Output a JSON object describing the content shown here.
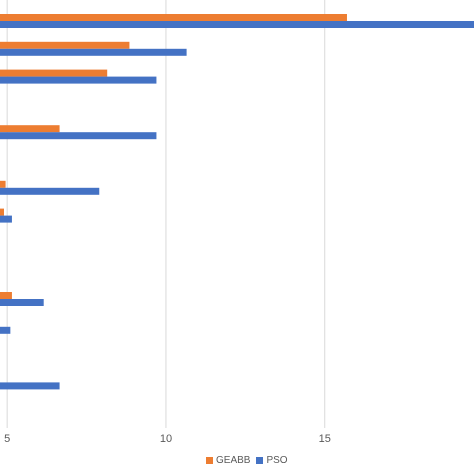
{
  "chart_data": {
    "type": "bar",
    "orientation": "horizontal",
    "x_ticks": [
      "5",
      "10",
      "15"
    ],
    "x_tick_values": [
      5,
      10,
      15
    ],
    "xlim": [
      4.9,
      19.7
    ],
    "grid": true,
    "legend_position": "bottom",
    "series": [
      {
        "name": "GEABB",
        "color": "#ED7D31",
        "values": [
          15.7,
          8.85,
          8.15,
          6.65,
          4.95,
          4.9,
          5.15,
          null,
          null
        ]
      },
      {
        "name": "PSO",
        "color": "#4472C4",
        "values": [
          19.7,
          10.65,
          9.7,
          9.7,
          7.9,
          5.15,
          6.15,
          5.1,
          6.65
        ]
      }
    ]
  }
}
